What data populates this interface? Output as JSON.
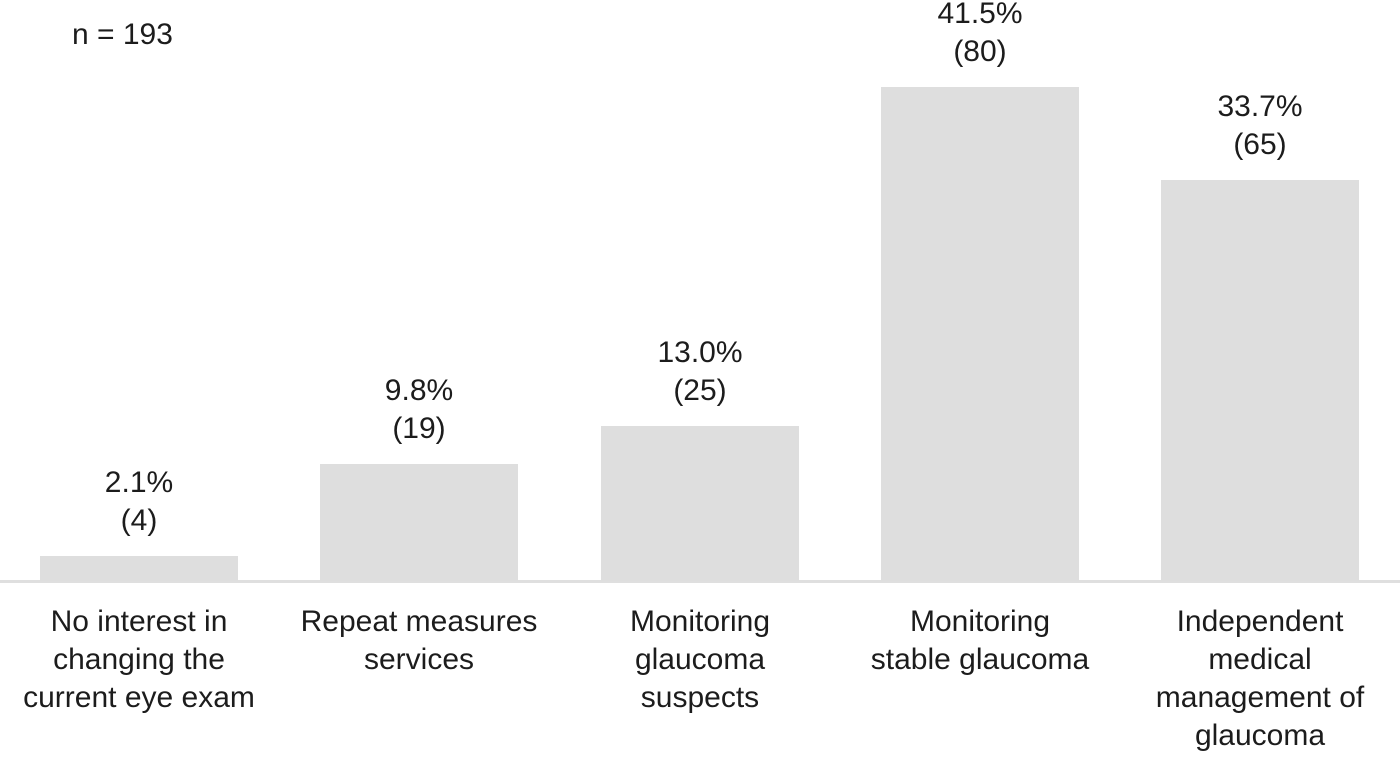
{
  "chart_data": {
    "type": "bar",
    "title": "",
    "sample_size_label": "n = 193",
    "categories": [
      "No interest in changing the current eye exam",
      "Repeat measures services",
      "Monitoring glaucoma suspects",
      "Monitoring stable glaucoma",
      "Independent medical management of glaucoma"
    ],
    "category_lines": [
      [
        "No interest in",
        "changing the",
        "current eye exam"
      ],
      [
        "Repeat measures",
        "services"
      ],
      [
        "Monitoring",
        "glaucoma",
        "suspects"
      ],
      [
        "Monitoring",
        "stable glaucoma"
      ],
      [
        "Independent",
        "medical",
        "management of",
        "glaucoma"
      ]
    ],
    "values": [
      2.1,
      9.8,
      13.0,
      41.5,
      33.7
    ],
    "counts": [
      4,
      19,
      25,
      80,
      65
    ],
    "value_labels": [
      [
        "2.1%",
        "(4)"
      ],
      [
        "9.8%",
        "(19)"
      ],
      [
        "13.0%",
        "(25)"
      ],
      [
        "41.5%",
        "(80)"
      ],
      [
        "33.7%",
        "(65)"
      ]
    ],
    "xlabel": "",
    "ylabel": "",
    "ylim": [
      0,
      48
    ],
    "grid": false,
    "legend_position": "none",
    "colors": {
      "bar_fill": "#dedede",
      "axis_line": "#dfdfdf",
      "text": "#1c1c1c",
      "background": "#ffffff"
    }
  }
}
